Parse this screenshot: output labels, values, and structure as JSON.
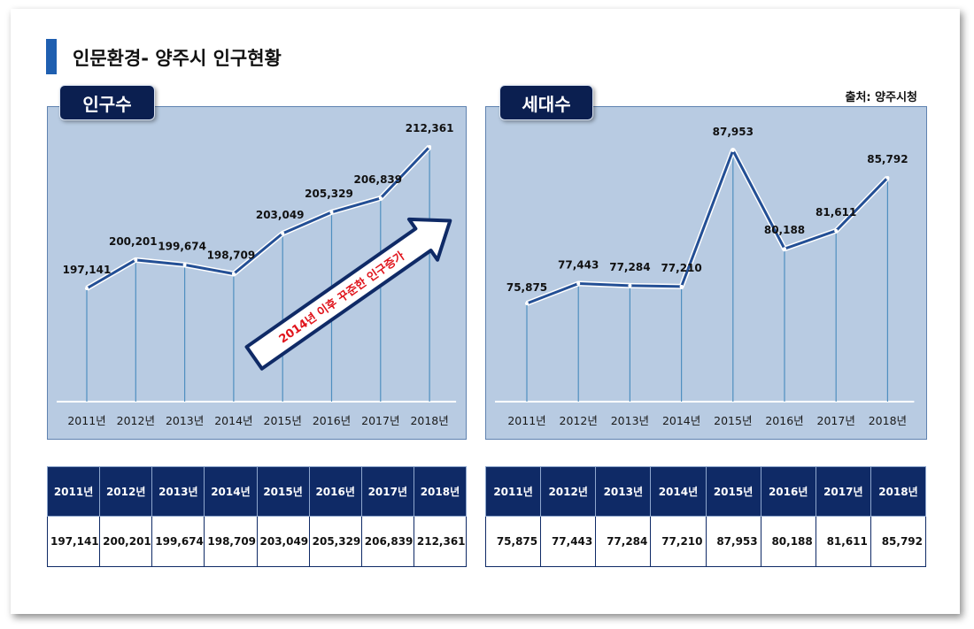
{
  "page": {
    "title": "인문환경- 양주시 인구현황",
    "source": "출처: 양주시청"
  },
  "chart_data": [
    {
      "type": "line",
      "title": "인구수",
      "categories": [
        "2011년",
        "2012년",
        "2013년",
        "2014년",
        "2015년",
        "2016년",
        "2017년",
        "2018년"
      ],
      "values": [
        197141,
        200201,
        199674,
        198709,
        203049,
        205329,
        206839,
        212361
      ],
      "value_labels": [
        "197,141",
        "200,201",
        "199,674",
        "198,709",
        "203,049",
        "205,329",
        "206,839",
        "212,361"
      ],
      "annotation": "2014년 이후 꾸준한 인구증가",
      "colors": {
        "line": "#234f95",
        "background": "#b8cbe2",
        "drop_lines": "#4f8fc0"
      }
    },
    {
      "type": "line",
      "title": "세대수",
      "categories": [
        "2011년",
        "2012년",
        "2013년",
        "2014년",
        "2015년",
        "2016년",
        "2017년",
        "2018년"
      ],
      "values": [
        75875,
        77443,
        77284,
        77210,
        87953,
        80188,
        81611,
        85792
      ],
      "value_labels": [
        "75,875",
        "77,443",
        "77,284",
        "77,210",
        "87,953",
        "80,188",
        "81,611",
        "85,792"
      ],
      "colors": {
        "line": "#234f95",
        "background": "#b8cbe2",
        "drop_lines": "#4f8fc0"
      }
    }
  ],
  "tables": {
    "population": {
      "headers": [
        "2011년",
        "2012년",
        "2013년",
        "2014년",
        "2015년",
        "2016년",
        "2017년",
        "2018년"
      ],
      "values": [
        "197,141",
        "200,201",
        "199,674",
        "198,709",
        "203,049",
        "205,329",
        "206,839",
        "212,361"
      ]
    },
    "households": {
      "headers": [
        "2011년",
        "2012년",
        "2013년",
        "2014년",
        "2015년",
        "2016년",
        "2017년",
        "2018년"
      ],
      "values": [
        "75,875",
        "77,443",
        "77,284",
        "77,210",
        "87,953",
        "80,188",
        "81,611",
        "85,792"
      ]
    }
  }
}
